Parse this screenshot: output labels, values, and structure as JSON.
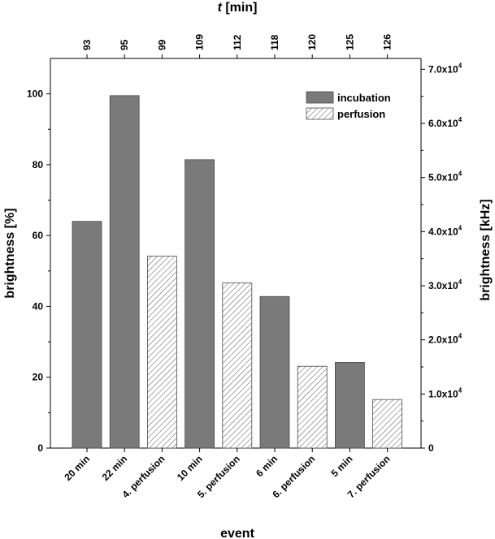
{
  "chart_data": {
    "type": "bar",
    "categories": [
      "20 min",
      "22 min",
      "4. perfusion",
      "10 min",
      "5. perfusion",
      "6 min",
      "6. perfusion",
      "5 min",
      "7. perfusion"
    ],
    "values": [
      64,
      99.5,
      54.2,
      81.4,
      46.6,
      42.8,
      23.1,
      24.2,
      13.7
    ],
    "kinds": [
      "incubation",
      "incubation",
      "perfusion",
      "incubation",
      "perfusion",
      "incubation",
      "perfusion",
      "incubation",
      "perfusion"
    ],
    "top_ticks": [
      "93",
      "95",
      "99",
      "109",
      "112",
      "118",
      "120",
      "125",
      "126"
    ],
    "xlabel": "event",
    "ylabel": "brightness [%]",
    "ylim": [
      0,
      110
    ],
    "yticks": [
      0,
      20,
      40,
      60,
      80,
      100
    ],
    "top_xlabel_italic": "t",
    "top_xlabel_rest": " [min]",
    "right_ylabel": "brightness [kHz]",
    "right_ylim": [
      0,
      72000
    ],
    "right_ticks": [
      {
        "value": 0,
        "mantissa": "0",
        "exp": ""
      },
      {
        "value": 10000,
        "mantissa": "1.0x10",
        "exp": "4"
      },
      {
        "value": 20000,
        "mantissa": "2.0x10",
        "exp": "4"
      },
      {
        "value": 30000,
        "mantissa": "3.0x10",
        "exp": "4"
      },
      {
        "value": 40000,
        "mantissa": "4.0x10",
        "exp": "4"
      },
      {
        "value": 50000,
        "mantissa": "5.0x10",
        "exp": "4"
      },
      {
        "value": 60000,
        "mantissa": "6.0x10",
        "exp": "4"
      },
      {
        "value": 70000,
        "mantissa": "7.0x10",
        "exp": "4"
      }
    ],
    "legend": {
      "position": "top-right",
      "entries": [
        {
          "key": "incubation",
          "label": "incubation"
        },
        {
          "key": "perfusion",
          "label": "perfusion"
        }
      ]
    },
    "colors": {
      "incubation": "#7a7a7a",
      "perfusion_fill": "#ffffff",
      "perfusion_hatch": "#555555",
      "bar_stroke": "#4a4a4a"
    },
    "grid": false
  }
}
